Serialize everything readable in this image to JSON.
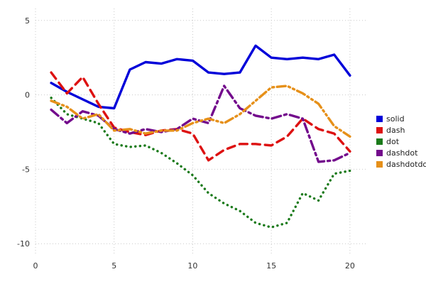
{
  "chart_data": {
    "type": "line",
    "title": "",
    "xlabel": "",
    "ylabel": "",
    "grid": true,
    "legend_position": "right",
    "xlim": [
      0,
      21
    ],
    "ylim": [
      -10.8,
      5.8
    ],
    "xticks": [
      0,
      5,
      10,
      15,
      20
    ],
    "yticks": [
      -10,
      -5,
      0,
      5
    ],
    "x": [
      1,
      2,
      3,
      4,
      5,
      6,
      7,
      8,
      9,
      10,
      11,
      12,
      13,
      14,
      15,
      16,
      17,
      18,
      19,
      20
    ],
    "series": [
      {
        "name": "solid",
        "color": "#0000d9",
        "linestyle": "solid",
        "values": [
          0.8,
          0.2,
          -0.3,
          -0.8,
          -0.9,
          1.7,
          2.2,
          2.1,
          2.4,
          2.3,
          1.5,
          1.4,
          1.5,
          3.3,
          2.5,
          2.4,
          2.5,
          2.4,
          2.7,
          1.3
        ]
      },
      {
        "name": "dash",
        "color": "#dd1111",
        "linestyle": "dash",
        "values": [
          1.5,
          0.1,
          1.2,
          -0.6,
          -2.2,
          -2.5,
          -2.7,
          -2.4,
          -2.3,
          -2.6,
          -4.4,
          -3.7,
          -3.3,
          -3.3,
          -3.4,
          -2.8,
          -1.6,
          -2.3,
          -2.6,
          -3.8
        ]
      },
      {
        "name": "dot",
        "color": "#1a7a1a",
        "linestyle": "dot",
        "values": [
          -0.2,
          -1.3,
          -1.6,
          -1.9,
          -3.3,
          -3.5,
          -3.4,
          -3.9,
          -4.6,
          -5.4,
          -6.6,
          -7.3,
          -7.8,
          -8.6,
          -8.9,
          -8.6,
          -6.6,
          -7.1,
          -5.3,
          -5.1
        ]
      },
      {
        "name": "dashdot",
        "color": "#730a8c",
        "linestyle": "dashdot",
        "values": [
          -1.0,
          -1.9,
          -1.1,
          -1.4,
          -2.3,
          -2.6,
          -2.3,
          -2.5,
          -2.3,
          -1.6,
          -1.9,
          0.6,
          -0.9,
          -1.4,
          -1.6,
          -1.3,
          -1.6,
          -4.5,
          -4.4,
          -3.9
        ]
      },
      {
        "name": "dashdotdot",
        "color": "#e69019",
        "linestyle": "dashdotdot",
        "values": [
          -0.4,
          -0.8,
          -1.6,
          -1.3,
          -2.4,
          -2.3,
          -2.6,
          -2.4,
          -2.4,
          -1.9,
          -1.6,
          -1.9,
          -1.3,
          -0.4,
          0.5,
          0.6,
          0.1,
          -0.6,
          -2.1,
          -2.8
        ]
      }
    ]
  }
}
